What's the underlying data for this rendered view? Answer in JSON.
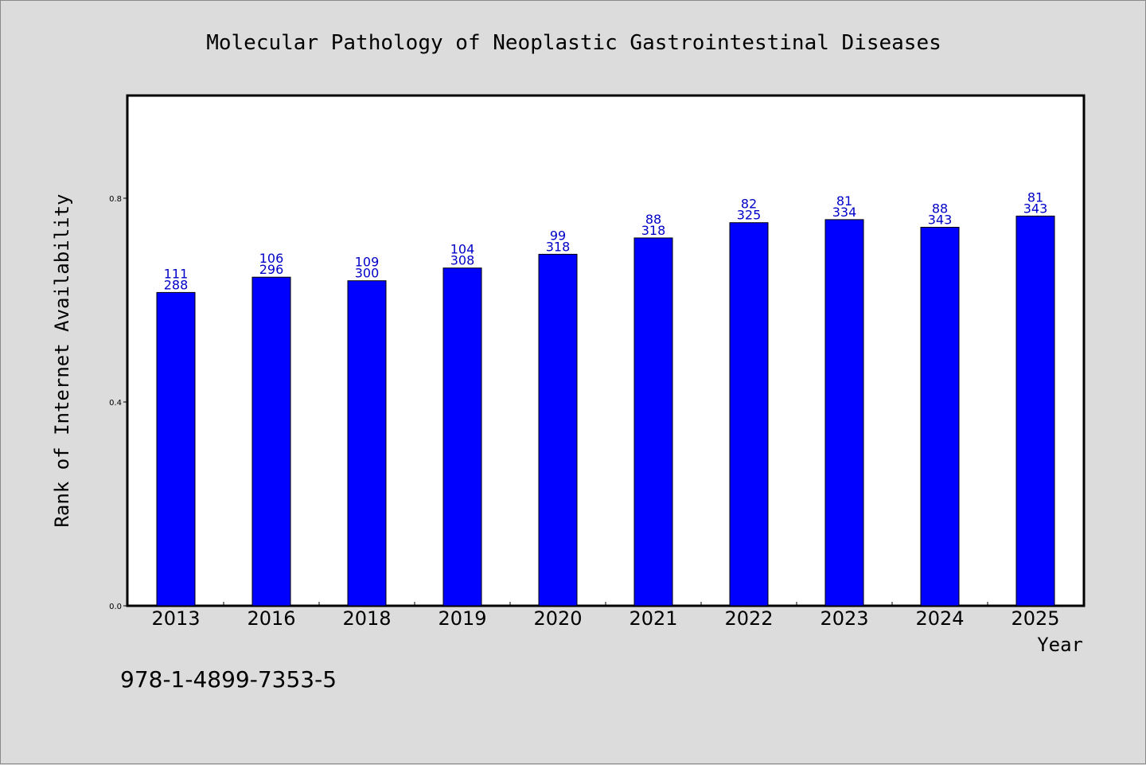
{
  "colors": {
    "background": "#dcdcdc",
    "plot_background": "#ffffff",
    "bar": "#0000ff",
    "data_label": "#0000c8"
  },
  "footnote": "978-1-4899-7353-5",
  "chart_data": {
    "type": "bar",
    "title": "Molecular Pathology of Neoplastic Gastrointestinal Diseases",
    "xlabel": "Year",
    "ylabel": "Rank of Internet Availability",
    "categories": [
      "2013",
      "2016",
      "2018",
      "2019",
      "2020",
      "2021",
      "2022",
      "2023",
      "2024",
      "2025"
    ],
    "values": [
      0.615,
      0.645,
      0.638,
      0.663,
      0.69,
      0.722,
      0.752,
      0.758,
      0.743,
      0.765
    ],
    "labels_top": [
      "111",
      "106",
      "109",
      "104",
      "99",
      "88",
      "82",
      "81",
      "88",
      "81"
    ],
    "labels_bottom": [
      "288",
      "296",
      "300",
      "308",
      "318",
      "318",
      "325",
      "334",
      "343",
      "343"
    ],
    "ylim": [
      0,
      1.0
    ],
    "yticks": [
      0.0,
      0.4,
      0.8
    ],
    "ytick_labels": [
      "0.0",
      "0.4",
      "0.8"
    ],
    "grid": false,
    "legend": "none"
  }
}
